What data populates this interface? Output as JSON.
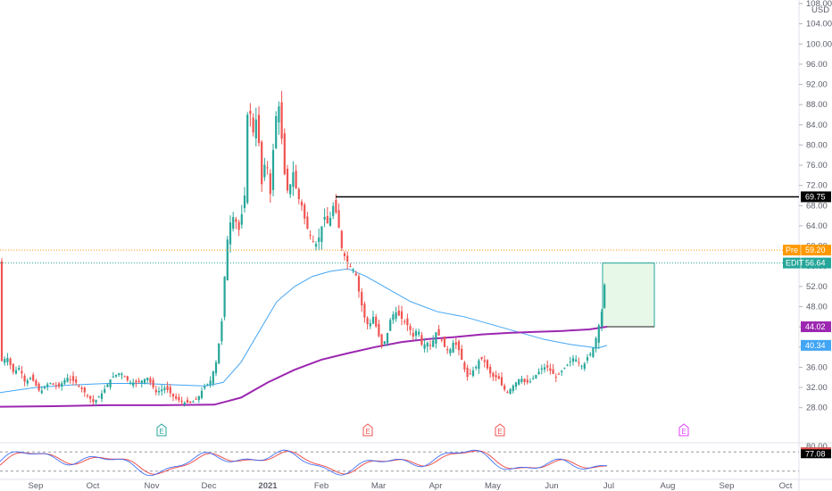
{
  "currency": "USD",
  "colors": {
    "up": "#26a69a",
    "down": "#ef5350",
    "ma_long": "#9c27b0",
    "ma_short": "#42a5f5",
    "pre": "#ff9800",
    "edit": "#26a69a",
    "resistance": "#000000",
    "box_fill": "#e8f8e8",
    "box_stroke": "#26a69a"
  },
  "chart_data": {
    "type": "candlestick",
    "y_axis": {
      "min": 26,
      "max": 108,
      "ticks": [
        28,
        32,
        36,
        40,
        44,
        48,
        52,
        56,
        60,
        64,
        68,
        72,
        76,
        80,
        84,
        88,
        92,
        96,
        100,
        104,
        108
      ],
      "tick_labels": [
        "28.00",
        "32.00",
        "36.00",
        "40.00",
        "44.00",
        "48.00",
        "52.00",
        "56.00",
        "60.00",
        "64.00",
        "68.00",
        "72.00",
        "76.00",
        "80.00",
        "84.00",
        "88.00",
        "92.00",
        "96.00",
        "100.00",
        "104.00",
        "108.00"
      ]
    },
    "x_axis": {
      "labels": [
        "Sep",
        "Oct",
        "Nov",
        "Dec",
        "2021",
        "Feb",
        "Mar",
        "Apr",
        "May",
        "Jun",
        "Jul",
        "Aug",
        "Sep",
        "Oct"
      ]
    },
    "price_labels": [
      {
        "name": "Pre",
        "value": "59.20"
      },
      {
        "name": "EDIT",
        "value": "56.64"
      },
      {
        "name": "",
        "value": "69.75"
      },
      {
        "name": "",
        "value": "44.02"
      },
      {
        "name": "",
        "value": "40.34"
      }
    ],
    "resistance_level": 69.75,
    "pre_market": 59.2,
    "last": 56.64,
    "ma_long_last": 44.02,
    "ma_short_last": 40.34,
    "box": {
      "top": 56.64,
      "bottom": 44.02
    },
    "earnings_markers": [
      {
        "label": "E",
        "kind": "positive"
      },
      {
        "label": "E",
        "kind": "negative"
      },
      {
        "label": "E",
        "kind": "negative"
      },
      {
        "label": "E",
        "kind": "future"
      }
    ],
    "oscillator": {
      "upper_label": "80.00",
      "value_label": "77.08"
    },
    "anchors": [
      [
        0,
        37
      ],
      [
        8,
        38
      ],
      [
        15,
        35
      ],
      [
        22,
        36
      ],
      [
        28,
        33
      ],
      [
        35,
        34
      ],
      [
        45,
        31
      ],
      [
        55,
        33
      ],
      [
        65,
        32
      ],
      [
        75,
        34
      ],
      [
        85,
        33
      ],
      [
        95,
        31
      ],
      [
        105,
        29
      ],
      [
        115,
        31
      ],
      [
        125,
        34
      ],
      [
        135,
        35
      ],
      [
        145,
        33
      ],
      [
        155,
        33
      ],
      [
        165,
        34
      ],
      [
        175,
        31
      ],
      [
        185,
        32
      ],
      [
        195,
        30
      ],
      [
        205,
        29
      ],
      [
        215,
        29
      ],
      [
        222,
        30
      ],
      [
        228,
        32
      ],
      [
        235,
        33
      ],
      [
        242,
        37
      ],
      [
        248,
        44
      ],
      [
        252,
        55
      ],
      [
        256,
        64
      ],
      [
        262,
        66
      ],
      [
        268,
        63
      ],
      [
        274,
        70
      ],
      [
        278,
        90
      ],
      [
        283,
        82
      ],
      [
        288,
        86
      ],
      [
        293,
        72
      ],
      [
        298,
        78
      ],
      [
        303,
        70
      ],
      [
        308,
        85
      ],
      [
        313,
        88
      ],
      [
        318,
        75
      ],
      [
        323,
        70
      ],
      [
        328,
        75
      ],
      [
        333,
        70
      ],
      [
        338,
        68
      ],
      [
        343,
        64
      ],
      [
        348,
        62
      ],
      [
        353,
        60
      ],
      [
        358,
        62
      ],
      [
        363,
        66
      ],
      [
        368,
        64
      ],
      [
        373,
        68
      ],
      [
        378,
        66
      ],
      [
        382,
        60
      ],
      [
        386,
        58
      ],
      [
        392,
        56
      ],
      [
        398,
        55
      ],
      [
        403,
        50
      ],
      [
        408,
        46
      ],
      [
        413,
        44
      ],
      [
        418,
        46
      ],
      [
        423,
        43
      ],
      [
        428,
        40
      ],
      [
        433,
        42
      ],
      [
        438,
        46
      ],
      [
        443,
        47
      ],
      [
        448,
        46
      ],
      [
        453,
        45
      ],
      [
        458,
        44
      ],
      [
        463,
        42
      ],
      [
        468,
        44
      ],
      [
        473,
        40
      ],
      [
        478,
        41
      ],
      [
        483,
        40
      ],
      [
        488,
        43
      ],
      [
        493,
        42
      ],
      [
        498,
        40
      ],
      [
        503,
        39
      ],
      [
        508,
        41
      ],
      [
        513,
        40
      ],
      [
        518,
        37
      ],
      [
        523,
        34
      ],
      [
        528,
        35
      ],
      [
        533,
        36
      ],
      [
        538,
        38
      ],
      [
        543,
        37
      ],
      [
        548,
        35
      ],
      [
        553,
        34
      ],
      [
        558,
        34
      ],
      [
        563,
        32
      ],
      [
        568,
        31
      ],
      [
        573,
        32
      ],
      [
        578,
        33
      ],
      [
        583,
        34
      ],
      [
        588,
        33
      ],
      [
        593,
        33
      ],
      [
        598,
        34
      ],
      [
        603,
        35
      ],
      [
        608,
        36
      ],
      [
        613,
        36
      ],
      [
        618,
        35
      ],
      [
        623,
        34
      ],
      [
        628,
        35
      ],
      [
        633,
        36
      ],
      [
        638,
        37
      ],
      [
        643,
        38
      ],
      [
        648,
        37
      ],
      [
        653,
        36
      ],
      [
        658,
        38
      ],
      [
        663,
        39
      ],
      [
        668,
        42
      ],
      [
        674,
        47
      ],
      [
        680,
        57
      ]
    ],
    "ma_long_points": [
      [
        0,
        28.2
      ],
      [
        60,
        28.3
      ],
      [
        120,
        28.5
      ],
      [
        180,
        28.5
      ],
      [
        240,
        28.6
      ],
      [
        270,
        30
      ],
      [
        300,
        33
      ],
      [
        330,
        35.5
      ],
      [
        360,
        37.5
      ],
      [
        390,
        38.8
      ],
      [
        420,
        40
      ],
      [
        450,
        41
      ],
      [
        480,
        41.6
      ],
      [
        510,
        42
      ],
      [
        540,
        42.5
      ],
      [
        570,
        42.8
      ],
      [
        600,
        43
      ],
      [
        630,
        43.2
      ],
      [
        660,
        43.5
      ],
      [
        680,
        44.02
      ]
    ],
    "ma_short_points": [
      [
        0,
        31
      ],
      [
        40,
        32
      ],
      [
        80,
        32.5
      ],
      [
        120,
        32.8
      ],
      [
        160,
        32.8
      ],
      [
        200,
        32.5
      ],
      [
        230,
        32.3
      ],
      [
        250,
        33
      ],
      [
        270,
        37
      ],
      [
        290,
        43
      ],
      [
        310,
        49
      ],
      [
        330,
        52
      ],
      [
        350,
        54
      ],
      [
        370,
        55
      ],
      [
        390,
        55.5
      ],
      [
        410,
        54
      ],
      [
        430,
        52
      ],
      [
        460,
        49
      ],
      [
        490,
        47
      ],
      [
        520,
        46
      ],
      [
        550,
        44.5
      ],
      [
        580,
        43
      ],
      [
        610,
        41.5
      ],
      [
        640,
        40.5
      ],
      [
        670,
        39.8
      ],
      [
        680,
        40.34
      ]
    ]
  }
}
